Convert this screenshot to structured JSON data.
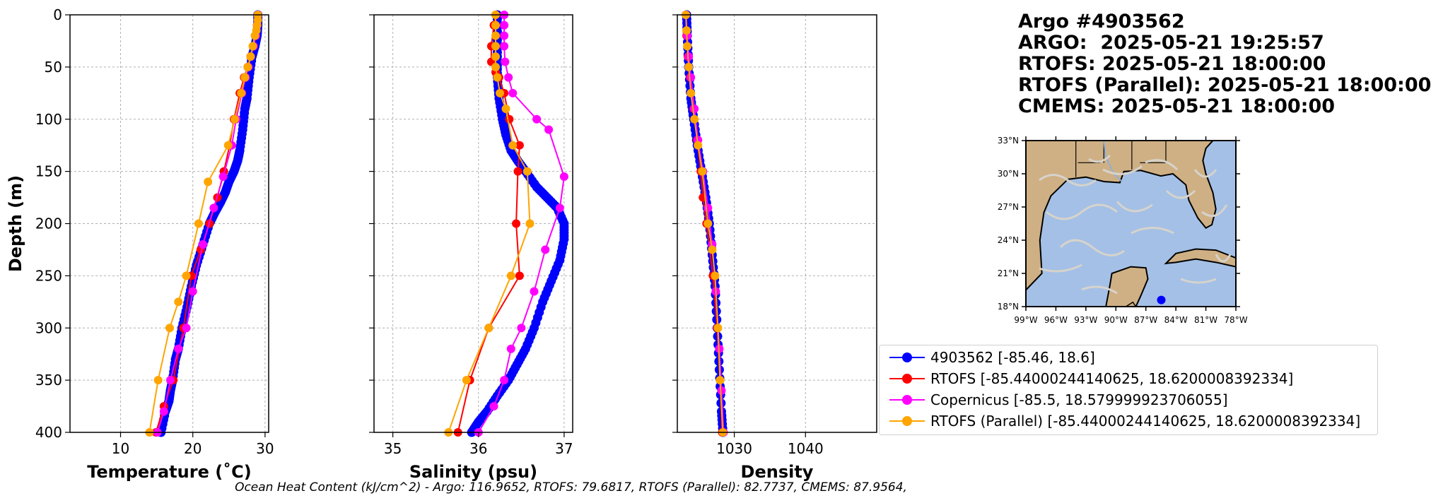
{
  "title_lines": [
    "Argo #4903562",
    "ARGO:  2025-05-21 19:25:57",
    "RTOFS: 2025-05-21 18:00:00",
    "RTOFS (Parallel): 2025-05-21 18:00:00",
    "CMEMS: 2025-05-21 18:00:00"
  ],
  "ohc_text": "Ocean Heat Content (kJ/cm^2) - Argo: 116.9652,  RTOFS: 79.6817,  RTOFS (Parallel): 82.7737,  CMEMS: 87.9564,",
  "colors": {
    "argo": "#0000ff",
    "rtofs": "#ff0000",
    "copernicus": "#ff00ff",
    "parallel": "#ffa500"
  },
  "legend": [
    {
      "label": "4903562 [-85.46, 18.6]",
      "color": "#0000ff"
    },
    {
      "label": "RTOFS [-85.44000244140625, 18.6200008392334]",
      "color": "#ff0000"
    },
    {
      "label": "Copernicus [-85.5, 18.579999923706055]",
      "color": "#ff00ff"
    },
    {
      "label": "RTOFS (Parallel) [-85.44000244140625, 18.6200008392334]",
      "color": "#ffa500"
    }
  ],
  "map": {
    "lon_ticks": [
      "99°W",
      "96°W",
      "93°W",
      "90°W",
      "87°W",
      "84°W",
      "81°W",
      "78°W"
    ],
    "lat_ticks": [
      "33°N",
      "30°N",
      "27°N",
      "24°N",
      "21°N",
      "18°N"
    ],
    "float_position": {
      "lon": -85.46,
      "lat": 18.6
    },
    "extent": {
      "lon": [
        -99,
        -78
      ],
      "lat": [
        18,
        33
      ]
    },
    "land_color": "#cfb084",
    "ocean_color": "#a4c0e6",
    "float_color": "#0000ff"
  },
  "chart_data": [
    {
      "type": "line",
      "xlabel": "Temperature (˚C)",
      "ylabel": "Depth (m)",
      "xlim": [
        3,
        30.5
      ],
      "ylim": [
        400,
        0
      ],
      "xticks": [
        10,
        20,
        30
      ],
      "yticks": [
        0,
        50,
        100,
        150,
        200,
        250,
        300,
        350,
        400
      ],
      "grid": true,
      "series": [
        {
          "name": "4903562 [-85.46, 18.6]",
          "color": "#0000ff",
          "marker": "dense",
          "x": [
            29.0,
            29.0,
            28.9,
            28.6,
            28.2,
            27.8,
            27.5,
            27.2,
            26.9,
            26.5,
            26.2,
            25.7,
            25.0,
            24.5,
            23.8,
            23.0,
            22.3,
            21.4,
            20.5,
            19.8,
            19.2,
            18.5,
            18.0,
            17.6,
            17.2,
            16.9,
            16.7,
            16.2,
            15.6
          ],
          "y": [
            0,
            10,
            20,
            30,
            40,
            60,
            80,
            90,
            110,
            130,
            140,
            150,
            160,
            170,
            180,
            190,
            200,
            220,
            240,
            260,
            280,
            300,
            320,
            330,
            350,
            360,
            370,
            380,
            400
          ]
        },
        {
          "name": "RTOFS [-85.44000244140625, 18.6200008392334]",
          "color": "#ff0000",
          "x": [
            29.0,
            28.9,
            28.7,
            28.4,
            28.0,
            27.6,
            27.1,
            26.5,
            25.7,
            25.1,
            24.3,
            23.4,
            22.3,
            21.1,
            19.8,
            18.7,
            17.3,
            16.0,
            14.9
          ],
          "y": [
            0,
            10,
            20,
            30,
            40,
            50,
            60,
            75,
            100,
            125,
            150,
            175,
            200,
            225,
            250,
            300,
            350,
            375,
            400
          ]
        },
        {
          "name": "Copernicus [-85.5, 18.579999923706055]",
          "color": "#ff00ff",
          "x": [
            29.0,
            28.9,
            28.7,
            28.4,
            28.0,
            27.7,
            27.3,
            26.8,
            26.0,
            25.4,
            24.2,
            22.9,
            21.4,
            20.0,
            19.1,
            18.0,
            16.9,
            16.0,
            15.1
          ],
          "y": [
            0,
            10,
            20,
            30,
            40,
            50,
            60,
            75,
            100,
            125,
            155,
            185,
            220,
            265,
            300,
            320,
            350,
            380,
            400
          ]
        },
        {
          "name": "RTOFS (Parallel) [-85.44000244140625, 18.6200008392334]",
          "color": "#ffa500",
          "x": [
            29.0,
            29.0,
            28.9,
            28.8,
            28.6,
            28.3,
            28.0,
            27.6,
            27.2,
            26.7,
            25.8,
            24.9,
            22.1,
            20.8,
            19.1,
            18.0,
            16.8,
            15.2,
            14.0
          ],
          "y": [
            0,
            5,
            10,
            15,
            20,
            30,
            40,
            50,
            60,
            75,
            100,
            125,
            160,
            200,
            250,
            275,
            300,
            350,
            400
          ]
        }
      ]
    },
    {
      "type": "line",
      "xlabel": "Salinity (psu)",
      "xlim": [
        34.78,
        37.1
      ],
      "ylim": [
        400,
        0
      ],
      "xticks": [
        35,
        36,
        37
      ],
      "grid": true,
      "series": [
        {
          "name": "4903562 [-85.46, 18.6]",
          "color": "#0000ff",
          "marker": "dense",
          "x": [
            36.22,
            36.22,
            36.22,
            36.22,
            36.24,
            36.28,
            36.32,
            36.38,
            36.46,
            36.55,
            36.68,
            36.8,
            36.92,
            37.0,
            37.0,
            36.95,
            36.85,
            36.75,
            36.65,
            36.55,
            36.45,
            36.35,
            36.22,
            36.1,
            36.0,
            35.92
          ],
          "y": [
            0,
            20,
            40,
            60,
            80,
            100,
            115,
            130,
            140,
            150,
            165,
            175,
            185,
            200,
            215,
            235,
            255,
            275,
            300,
            320,
            335,
            350,
            365,
            380,
            390,
            400
          ]
        },
        {
          "name": "RTOFS [-85.44000244140625, 18.6200008392334]",
          "color": "#ff0000",
          "x": [
            36.2,
            36.18,
            36.15,
            36.15,
            36.2,
            36.24,
            36.3,
            36.36,
            36.48,
            36.46,
            36.44,
            36.48,
            36.12,
            35.9,
            35.76
          ],
          "y": [
            0,
            10,
            30,
            45,
            55,
            60,
            75,
            100,
            125,
            150,
            200,
            250,
            300,
            350,
            400
          ]
        },
        {
          "name": "Copernicus [-85.5, 18.579999923706055]",
          "color": "#ff00ff",
          "x": [
            36.3,
            36.3,
            36.3,
            36.3,
            36.31,
            36.35,
            36.4,
            36.68,
            36.82,
            37.0,
            36.95,
            36.78,
            36.65,
            36.5,
            36.38,
            36.3,
            36.18,
            36.0
          ],
          "y": [
            0,
            10,
            20,
            30,
            45,
            60,
            75,
            100,
            110,
            155,
            185,
            225,
            265,
            300,
            320,
            350,
            375,
            400
          ]
        },
        {
          "name": "RTOFS (Parallel) [-85.44000244140625, 18.6200008392334]",
          "color": "#ffa500",
          "x": [
            36.2,
            36.2,
            36.2,
            36.2,
            36.2,
            36.2,
            36.22,
            36.25,
            36.32,
            36.4,
            36.57,
            36.6,
            36.38,
            36.12,
            35.86,
            35.65
          ],
          "y": [
            0,
            10,
            20,
            30,
            40,
            50,
            60,
            75,
            90,
            125,
            150,
            200,
            250,
            300,
            350,
            400
          ]
        }
      ]
    },
    {
      "type": "line",
      "xlabel": "Density",
      "xlim": [
        1022,
        1050
      ],
      "ylim": [
        400,
        0
      ],
      "xticks": [
        1030,
        1040
      ],
      "grid": true,
      "series": [
        {
          "name": "4903562 [-85.46, 18.6]",
          "color": "#0000ff",
          "marker": "dense",
          "x": [
            1023.3,
            1023.4,
            1023.6,
            1023.9,
            1024.3,
            1024.8,
            1025.4,
            1026.0,
            1026.5,
            1026.9,
            1027.3,
            1027.6,
            1027.9,
            1028.2,
            1028.4
          ],
          "y": [
            0,
            20,
            50,
            80,
            100,
            125,
            150,
            175,
            200,
            230,
            260,
            300,
            340,
            380,
            400
          ]
        },
        {
          "name": "RTOFS [-85.44000244140625, 18.6200008392334]",
          "color": "#ff0000",
          "x": [
            1023.2,
            1023.3,
            1023.5,
            1023.8,
            1024.3,
            1024.8,
            1025.3,
            1025.6,
            1026.1,
            1027.0,
            1027.6,
            1028.0,
            1028.3
          ],
          "y": [
            0,
            20,
            40,
            60,
            90,
            120,
            150,
            175,
            200,
            250,
            300,
            350,
            400
          ]
        },
        {
          "name": "Copernicus [-85.5, 18.579999923706055]",
          "color": "#ff00ff",
          "x": [
            1023.2,
            1023.4,
            1023.6,
            1023.9,
            1024.4,
            1024.9,
            1025.6,
            1026.3,
            1026.9,
            1027.4,
            1027.9,
            1028.2,
            1028.5
          ],
          "y": [
            0,
            20,
            40,
            60,
            90,
            120,
            150,
            185,
            220,
            265,
            320,
            360,
            400
          ]
        },
        {
          "name": "RTOFS (Parallel) [-85.44000244140625, 18.6200008392334]",
          "color": "#ffa500",
          "x": [
            1023.2,
            1023.3,
            1023.4,
            1023.6,
            1023.9,
            1024.4,
            1024.9,
            1025.5,
            1026.3,
            1026.9,
            1027.3,
            1027.7,
            1028.0,
            1028.4
          ],
          "y": [
            0,
            15,
            30,
            50,
            75,
            100,
            125,
            150,
            200,
            225,
            250,
            300,
            350,
            400
          ]
        }
      ]
    }
  ]
}
